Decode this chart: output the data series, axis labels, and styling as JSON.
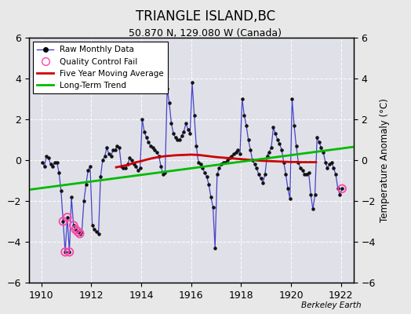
{
  "title": "TRIANGLE ISLAND,BC",
  "subtitle": "50.870 N, 129.080 W (Canada)",
  "ylabel": "Temperature Anomaly (°C)",
  "watermark": "Berkeley Earth",
  "xlim": [
    1909.5,
    1922.5
  ],
  "ylim": [
    -6,
    6
  ],
  "yticks": [
    -6,
    -4,
    -2,
    0,
    2,
    4,
    6
  ],
  "xticks": [
    1910,
    1912,
    1914,
    1916,
    1918,
    1920,
    1922
  ],
  "bg_color": "#e8e8e8",
  "plot_bg_color": "#e0e0e8",
  "raw_color": "#4444cc",
  "raw_marker_color": "#111111",
  "qc_color": "#ff44aa",
  "moving_avg_color": "#cc0000",
  "trend_color": "#00bb00",
  "raw_monthly": [
    [
      1910.042,
      -0.1
    ],
    [
      1910.125,
      -0.3
    ],
    [
      1910.208,
      0.2
    ],
    [
      1910.292,
      0.1
    ],
    [
      1910.375,
      -0.2
    ],
    [
      1910.458,
      -0.3
    ],
    [
      1910.542,
      -0.1
    ],
    [
      1910.625,
      -0.1
    ],
    [
      1910.708,
      -0.6
    ],
    [
      1910.792,
      -1.5
    ],
    [
      1910.875,
      -3.0
    ],
    [
      1910.958,
      -4.5
    ],
    [
      1911.042,
      -2.8
    ],
    [
      1911.125,
      -4.5
    ],
    [
      1911.208,
      -1.8
    ],
    [
      1911.292,
      -3.2
    ],
    [
      1911.375,
      -3.4
    ],
    [
      1911.458,
      -3.5
    ],
    [
      1911.542,
      -3.6
    ],
    [
      1911.625,
      -3.5
    ],
    [
      1911.708,
      -2.0
    ],
    [
      1911.792,
      -1.2
    ],
    [
      1911.875,
      -0.5
    ],
    [
      1911.958,
      -0.3
    ],
    [
      1912.042,
      -3.2
    ],
    [
      1912.125,
      -3.4
    ],
    [
      1912.208,
      -3.5
    ],
    [
      1912.292,
      -3.6
    ],
    [
      1912.375,
      -0.8
    ],
    [
      1912.458,
      0.0
    ],
    [
      1912.542,
      0.2
    ],
    [
      1912.625,
      0.6
    ],
    [
      1912.708,
      0.3
    ],
    [
      1912.792,
      0.2
    ],
    [
      1912.875,
      0.5
    ],
    [
      1912.958,
      0.5
    ],
    [
      1913.042,
      0.7
    ],
    [
      1913.125,
      0.6
    ],
    [
      1913.208,
      -0.3
    ],
    [
      1913.292,
      -0.4
    ],
    [
      1913.375,
      -0.4
    ],
    [
      1913.458,
      -0.2
    ],
    [
      1913.542,
      0.1
    ],
    [
      1913.625,
      0.0
    ],
    [
      1913.708,
      -0.2
    ],
    [
      1913.792,
      -0.3
    ],
    [
      1913.875,
      -0.5
    ],
    [
      1913.958,
      -0.4
    ],
    [
      1914.042,
      2.0
    ],
    [
      1914.125,
      1.4
    ],
    [
      1914.208,
      1.1
    ],
    [
      1914.292,
      0.9
    ],
    [
      1914.375,
      0.7
    ],
    [
      1914.458,
      0.6
    ],
    [
      1914.542,
      0.5
    ],
    [
      1914.625,
      0.4
    ],
    [
      1914.708,
      0.2
    ],
    [
      1914.792,
      -0.3
    ],
    [
      1914.875,
      -0.7
    ],
    [
      1914.958,
      -0.6
    ],
    [
      1915.042,
      3.5
    ],
    [
      1915.125,
      2.8
    ],
    [
      1915.208,
      1.8
    ],
    [
      1915.292,
      1.3
    ],
    [
      1915.375,
      1.1
    ],
    [
      1915.458,
      1.0
    ],
    [
      1915.542,
      1.0
    ],
    [
      1915.625,
      1.2
    ],
    [
      1915.708,
      1.4
    ],
    [
      1915.792,
      1.8
    ],
    [
      1915.875,
      1.5
    ],
    [
      1915.958,
      1.3
    ],
    [
      1916.042,
      3.8
    ],
    [
      1916.125,
      2.2
    ],
    [
      1916.208,
      0.7
    ],
    [
      1916.292,
      -0.1
    ],
    [
      1916.375,
      -0.2
    ],
    [
      1916.458,
      -0.4
    ],
    [
      1916.542,
      -0.6
    ],
    [
      1916.625,
      -0.8
    ],
    [
      1916.708,
      -1.2
    ],
    [
      1916.792,
      -1.8
    ],
    [
      1916.875,
      -2.3
    ],
    [
      1916.958,
      -4.3
    ],
    [
      1917.042,
      -0.7
    ],
    [
      1917.125,
      -0.4
    ],
    [
      1917.208,
      -0.2
    ],
    [
      1917.292,
      -0.1
    ],
    [
      1917.375,
      -0.1
    ],
    [
      1917.458,
      0.0
    ],
    [
      1917.542,
      0.1
    ],
    [
      1917.625,
      0.2
    ],
    [
      1917.708,
      0.3
    ],
    [
      1917.792,
      0.4
    ],
    [
      1917.875,
      0.5
    ],
    [
      1917.958,
      0.3
    ],
    [
      1918.042,
      3.0
    ],
    [
      1918.125,
      2.2
    ],
    [
      1918.208,
      1.7
    ],
    [
      1918.292,
      1.0
    ],
    [
      1918.375,
      0.5
    ],
    [
      1918.458,
      0.0
    ],
    [
      1918.542,
      -0.2
    ],
    [
      1918.625,
      -0.4
    ],
    [
      1918.708,
      -0.7
    ],
    [
      1918.792,
      -0.9
    ],
    [
      1918.875,
      -1.1
    ],
    [
      1918.958,
      -0.7
    ],
    [
      1919.042,
      0.2
    ],
    [
      1919.125,
      0.4
    ],
    [
      1919.208,
      0.6
    ],
    [
      1919.292,
      1.6
    ],
    [
      1919.375,
      1.3
    ],
    [
      1919.458,
      1.0
    ],
    [
      1919.542,
      0.8
    ],
    [
      1919.625,
      0.5
    ],
    [
      1919.708,
      -0.1
    ],
    [
      1919.792,
      -0.7
    ],
    [
      1919.875,
      -1.4
    ],
    [
      1919.958,
      -1.9
    ],
    [
      1920.042,
      3.0
    ],
    [
      1920.125,
      1.7
    ],
    [
      1920.208,
      0.7
    ],
    [
      1920.292,
      -0.1
    ],
    [
      1920.375,
      -0.4
    ],
    [
      1920.458,
      -0.5
    ],
    [
      1920.542,
      -0.7
    ],
    [
      1920.625,
      -0.7
    ],
    [
      1920.708,
      -0.6
    ],
    [
      1920.792,
      -1.7
    ],
    [
      1920.875,
      -2.4
    ],
    [
      1920.958,
      -1.7
    ],
    [
      1921.042,
      1.1
    ],
    [
      1921.125,
      0.9
    ],
    [
      1921.208,
      0.6
    ],
    [
      1921.292,
      0.4
    ],
    [
      1921.375,
      -0.1
    ],
    [
      1921.458,
      -0.4
    ],
    [
      1921.542,
      -0.2
    ],
    [
      1921.625,
      -0.1
    ],
    [
      1921.708,
      -0.4
    ],
    [
      1921.792,
      -0.7
    ],
    [
      1921.875,
      -1.4
    ],
    [
      1921.958,
      -1.7
    ],
    [
      1922.042,
      -1.4
    ]
  ],
  "qc_fail_points": [
    [
      1910.875,
      -3.0
    ],
    [
      1910.958,
      -4.5
    ],
    [
      1911.042,
      -2.8
    ],
    [
      1911.125,
      -4.5
    ],
    [
      1911.292,
      -3.2
    ],
    [
      1911.375,
      -3.4
    ],
    [
      1911.458,
      -3.5
    ],
    [
      1911.542,
      -3.6
    ],
    [
      1922.042,
      -1.4
    ]
  ],
  "moving_avg": [
    [
      1913.0,
      -0.35
    ],
    [
      1913.2,
      -0.3
    ],
    [
      1913.4,
      -0.25
    ],
    [
      1913.6,
      -0.18
    ],
    [
      1913.8,
      -0.1
    ],
    [
      1914.0,
      -0.05
    ],
    [
      1914.2,
      0.02
    ],
    [
      1914.4,
      0.08
    ],
    [
      1914.6,
      0.13
    ],
    [
      1914.8,
      0.17
    ],
    [
      1915.0,
      0.2
    ],
    [
      1915.2,
      0.22
    ],
    [
      1915.4,
      0.24
    ],
    [
      1915.6,
      0.25
    ],
    [
      1915.8,
      0.26
    ],
    [
      1916.0,
      0.27
    ],
    [
      1916.2,
      0.26
    ],
    [
      1916.4,
      0.24
    ],
    [
      1916.6,
      0.21
    ],
    [
      1916.8,
      0.18
    ],
    [
      1917.0,
      0.15
    ],
    [
      1917.2,
      0.13
    ],
    [
      1917.4,
      0.11
    ],
    [
      1917.6,
      0.09
    ],
    [
      1917.8,
      0.07
    ],
    [
      1918.0,
      0.05
    ],
    [
      1918.2,
      0.03
    ],
    [
      1918.4,
      0.01
    ],
    [
      1918.6,
      -0.01
    ],
    [
      1918.8,
      -0.03
    ],
    [
      1919.0,
      -0.04
    ],
    [
      1919.2,
      -0.05
    ],
    [
      1919.4,
      -0.06
    ],
    [
      1919.6,
      -0.07
    ],
    [
      1919.8,
      -0.08
    ],
    [
      1920.0,
      -0.09
    ],
    [
      1920.2,
      -0.09
    ],
    [
      1920.4,
      -0.1
    ],
    [
      1920.6,
      -0.1
    ],
    [
      1920.8,
      -0.1
    ],
    [
      1921.0,
      -0.1
    ]
  ],
  "trend_x": [
    1909.5,
    1922.5
  ],
  "trend_y": [
    -1.45,
    0.65
  ]
}
